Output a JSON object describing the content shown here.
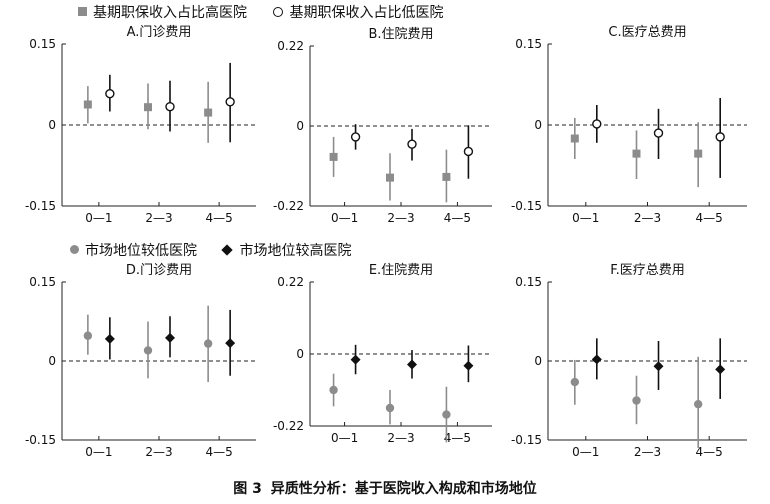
{
  "legend_top": [
    {
      "label": "基期职保收入占比高医院",
      "marker": "square",
      "color": "#8c8c8c"
    },
    {
      "label": "基期职保收入占比低医院",
      "marker": "hollow-circle",
      "color": "#111111"
    }
  ],
  "legend_bottom": [
    {
      "label": "市场地位较低医院",
      "marker": "circle",
      "color": "#8c8c8c"
    },
    {
      "label": "市场地位较高医院",
      "marker": "diamond",
      "color": "#111111"
    }
  ],
  "caption": {
    "label": "图 3",
    "text": "异质性分析：基于医院收入构成和市场地位"
  },
  "chart_data": [
    {
      "type": "scatter",
      "title": "A.门诊费用",
      "categories": [
        "0—1",
        "2—3",
        "4—5"
      ],
      "ylim": [
        -0.15,
        0.15
      ],
      "yticks": [
        "0.15",
        "0",
        "-0.15"
      ],
      "ytick_values": [
        0.15,
        0,
        -0.15
      ],
      "series": [
        {
          "name": "基期职保收入占比高医院",
          "marker": "square",
          "color": "#8c8c8c",
          "values": [
            0.038,
            0.033,
            0.023
          ],
          "ci_low": [
            0.003,
            -0.008,
            -0.033
          ],
          "ci_high": [
            0.072,
            0.077,
            0.08
          ]
        },
        {
          "name": "基期职保收入占比低医院",
          "marker": "hollow-circle",
          "color": "#111111",
          "values": [
            0.058,
            0.034,
            0.043
          ],
          "ci_low": [
            0.025,
            -0.012,
            -0.032
          ],
          "ci_high": [
            0.093,
            0.082,
            0.115
          ]
        }
      ]
    },
    {
      "type": "scatter",
      "title": "B.住院费用",
      "categories": [
        "0—1",
        "2—3",
        "4—5"
      ],
      "ylim": [
        -0.22,
        0.22
      ],
      "yticks": [
        "0.22",
        "0",
        "-0.22"
      ],
      "ytick_values": [
        0.22,
        0,
        -0.22
      ],
      "series": [
        {
          "name": "基期职保收入占比高医院",
          "marker": "square",
          "color": "#8c8c8c",
          "values": [
            -0.085,
            -0.142,
            -0.14
          ],
          "ci_low": [
            -0.14,
            -0.205,
            -0.21
          ],
          "ci_high": [
            -0.03,
            -0.075,
            -0.065
          ]
        },
        {
          "name": "基期职保收入占比低医院",
          "marker": "hollow-circle",
          "color": "#111111",
          "values": [
            -0.03,
            -0.05,
            -0.07
          ],
          "ci_low": [
            -0.065,
            -0.095,
            -0.145
          ],
          "ci_high": [
            0.005,
            -0.008,
            0.002
          ]
        }
      ]
    },
    {
      "type": "scatter",
      "title": "C.医疗总费用",
      "categories": [
        "0—1",
        "2—3",
        "4—5"
      ],
      "ylim": [
        -0.15,
        0.15
      ],
      "yticks": [
        "0.15",
        "0",
        "-0.15"
      ],
      "ytick_values": [
        0.15,
        0,
        -0.15
      ],
      "series": [
        {
          "name": "基期职保收入占比高医院",
          "marker": "square",
          "color": "#8c8c8c",
          "values": [
            -0.025,
            -0.053,
            -0.053
          ],
          "ci_low": [
            -0.063,
            -0.1,
            -0.115
          ],
          "ci_high": [
            0.013,
            -0.01,
            0.005
          ]
        },
        {
          "name": "基期职保收入占比低医院",
          "marker": "hollow-circle",
          "color": "#111111",
          "values": [
            0.002,
            -0.015,
            -0.022
          ],
          "ci_low": [
            -0.033,
            -0.063,
            -0.098
          ],
          "ci_high": [
            0.037,
            0.03,
            0.05
          ]
        }
      ]
    },
    {
      "type": "scatter",
      "title": "D.门诊费用",
      "categories": [
        "0—1",
        "2—3",
        "4—5"
      ],
      "ylim": [
        -0.15,
        0.15
      ],
      "yticks": [
        "0.15",
        "0",
        "-0.15"
      ],
      "ytick_values": [
        0.15,
        0,
        -0.15
      ],
      "series": [
        {
          "name": "市场地位较低医院",
          "marker": "circle",
          "color": "#8c8c8c",
          "values": [
            0.048,
            0.02,
            0.033
          ],
          "ci_low": [
            0.012,
            -0.033,
            -0.04
          ],
          "ci_high": [
            0.088,
            0.075,
            0.105
          ]
        },
        {
          "name": "市场地位较高医院",
          "marker": "diamond",
          "color": "#111111",
          "values": [
            0.042,
            0.044,
            0.034
          ],
          "ci_low": [
            0.003,
            0.007,
            -0.028
          ],
          "ci_high": [
            0.083,
            0.085,
            0.097
          ]
        }
      ]
    },
    {
      "type": "scatter",
      "title": "E.住院费用",
      "categories": [
        "0—1",
        "2—3",
        "4—5"
      ],
      "ylim": [
        -0.22,
        0.22
      ],
      "yticks": [
        "0.22",
        "0",
        "-0.22"
      ],
      "ytick_values": [
        0.22,
        0,
        -0.22
      ],
      "series": [
        {
          "name": "市场地位较低医院",
          "marker": "circle",
          "color": "#8c8c8c",
          "values": [
            -0.11,
            -0.165,
            -0.185
          ],
          "ci_low": [
            -0.16,
            -0.215,
            -0.27
          ],
          "ci_high": [
            -0.06,
            -0.11,
            -0.1
          ]
        },
        {
          "name": "市场地位较高医院",
          "marker": "diamond",
          "color": "#111111",
          "values": [
            -0.017,
            -0.032,
            -0.036
          ],
          "ci_low": [
            -0.062,
            -0.075,
            -0.086
          ],
          "ci_high": [
            0.028,
            0.012,
            0.026
          ]
        }
      ]
    },
    {
      "type": "scatter",
      "title": "F.医疗总费用",
      "categories": [
        "0—1",
        "2—3",
        "4—5"
      ],
      "ylim": [
        -0.15,
        0.15
      ],
      "yticks": [
        "0.15",
        "0",
        "-0.15"
      ],
      "ytick_values": [
        0.15,
        0,
        -0.15
      ],
      "series": [
        {
          "name": "市场地位较低医院",
          "marker": "circle",
          "color": "#8c8c8c",
          "values": [
            -0.04,
            -0.075,
            -0.082
          ],
          "ci_low": [
            -0.083,
            -0.12,
            -0.165
          ],
          "ci_high": [
            0.002,
            -0.028,
            0.008
          ]
        },
        {
          "name": "市场地位较高医院",
          "marker": "diamond",
          "color": "#111111",
          "values": [
            0.003,
            -0.01,
            -0.016
          ],
          "ci_low": [
            -0.035,
            -0.055,
            -0.072
          ],
          "ci_high": [
            0.043,
            0.038,
            0.043
          ]
        }
      ]
    }
  ]
}
